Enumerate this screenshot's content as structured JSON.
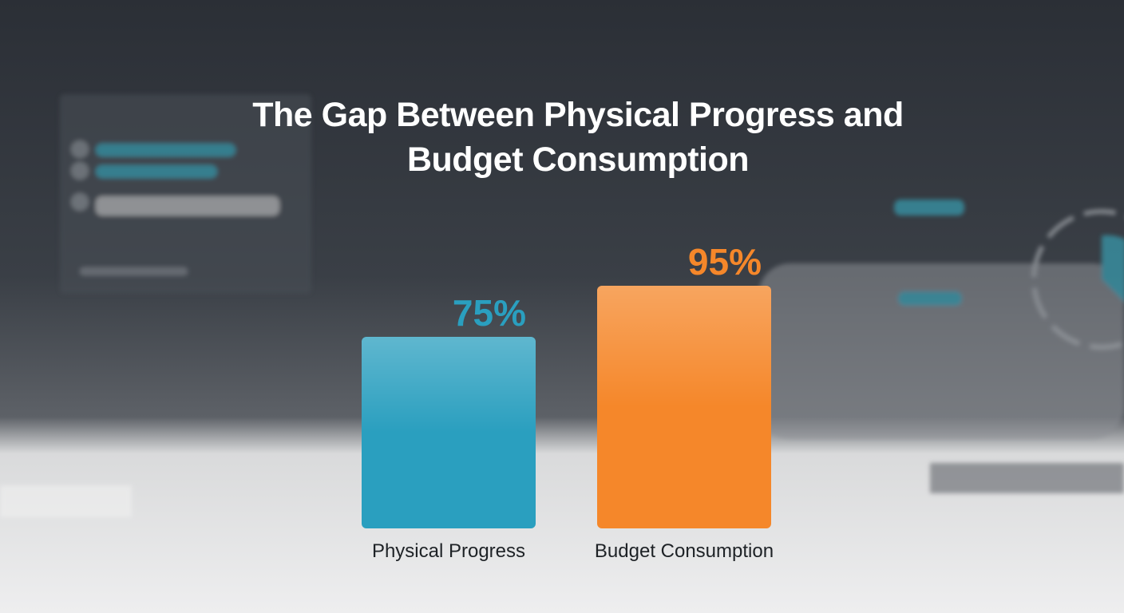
{
  "chart_data": {
    "type": "bar",
    "title": "The Gap Between Physical Progress and Budget Consumption",
    "categories": [
      "Physical Progress",
      "Budget Consumption"
    ],
    "values": [
      75,
      95
    ],
    "value_labels": [
      "75%",
      "95%"
    ],
    "colors": [
      "#2a9fbf",
      "#f5872a"
    ]
  }
}
